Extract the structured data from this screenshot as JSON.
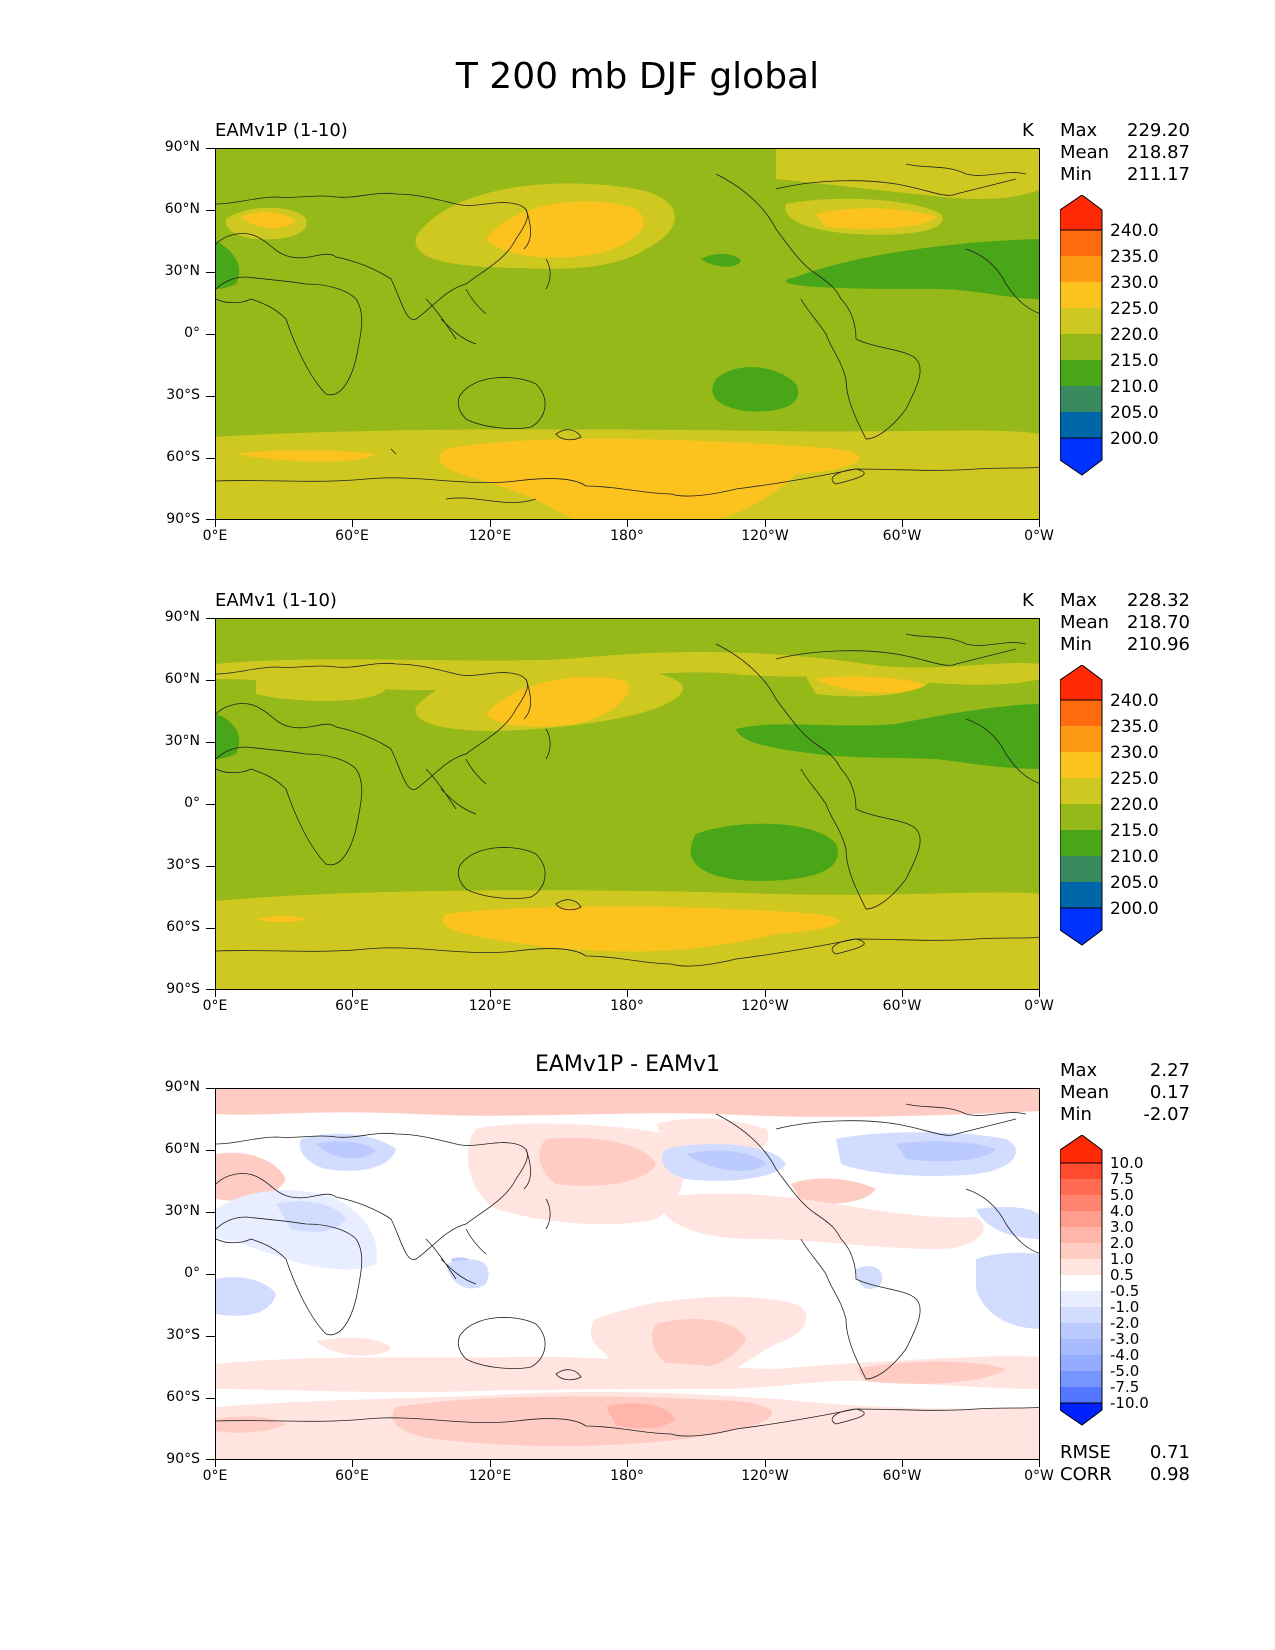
{
  "figure_title": "T 200 mb DJF global",
  "x_tick_labels": [
    "0°E",
    "60°E",
    "120°E",
    "180°",
    "120°W",
    "60°W",
    "0°W"
  ],
  "y_tick_labels": [
    "90°N",
    "60°N",
    "30°N",
    "0°",
    "30°S",
    "60°S",
    "90°S"
  ],
  "panels": [
    {
      "title": "EAMv1P (1-10)",
      "units": "K",
      "stats": {
        "max_label": "Max",
        "max": "229.20",
        "mean_label": "Mean",
        "mean": "218.87",
        "min_label": "Min",
        "min": "211.17"
      },
      "colorbar_levels": [
        "240.0",
        "235.0",
        "230.0",
        "225.0",
        "220.0",
        "215.0",
        "210.0",
        "205.0",
        "200.0"
      ]
    },
    {
      "title": "EAMv1 (1-10)",
      "units": "K",
      "stats": {
        "max_label": "Max",
        "max": "228.32",
        "mean_label": "Mean",
        "mean": "218.70",
        "min_label": "Min",
        "min": "210.96"
      },
      "colorbar_levels": [
        "240.0",
        "235.0",
        "230.0",
        "225.0",
        "220.0",
        "215.0",
        "210.0",
        "205.0",
        "200.0"
      ]
    },
    {
      "title": "EAMv1P - EAMv1",
      "stats": {
        "max_label": "Max",
        "max": "2.27",
        "mean_label": "Mean",
        "mean": "0.17",
        "min_label": "Min",
        "min": "-2.07"
      },
      "colorbar_levels": [
        "10.0",
        "7.5",
        "5.0",
        "4.0",
        "3.0",
        "2.0",
        "1.0",
        "0.5",
        "-0.5",
        "-1.0",
        "-2.0",
        "-3.0",
        "-4.0",
        "-5.0",
        "-7.5",
        "-10.0"
      ],
      "metrics": {
        "rmse_label": "RMSE",
        "rmse": "0.71",
        "corr_label": "CORR",
        "corr": "0.98"
      }
    }
  ],
  "colors": {
    "abs_scale": [
      "#0033ff",
      "#0066aa",
      "#3a8a60",
      "#48a618",
      "#94b918",
      "#cfc820",
      "#fcc21e",
      "#ff9a15",
      "#ff6a0f",
      "#ff2a05"
    ],
    "diff_scale": [
      "#0022ff",
      "#3355ff",
      "#5577ff",
      "#7795ff",
      "#93acff",
      "#a8bbff",
      "#bccbff",
      "#d2dcff",
      "#e8eeff",
      "#ffffff",
      "#ffe4e0",
      "#ffccc4",
      "#ffb5aa",
      "#ff9d8e",
      "#ff8470",
      "#ff6a54",
      "#ff4a30",
      "#ff2a05"
    ]
  },
  "chart_data": [
    {
      "type": "heatmap",
      "title": "EAMv1P (1-10)",
      "variable": "T 200 mb DJF",
      "units": "K",
      "x_range": [
        0,
        360
      ],
      "y_range": [
        -90,
        90
      ],
      "stats": {
        "max": 229.2,
        "mean": 218.87,
        "min": 211.17
      },
      "contour_levels": [
        200,
        205,
        210,
        215,
        220,
        225,
        230,
        235,
        240
      ]
    },
    {
      "type": "heatmap",
      "title": "EAMv1 (1-10)",
      "variable": "T 200 mb DJF",
      "units": "K",
      "x_range": [
        0,
        360
      ],
      "y_range": [
        -90,
        90
      ],
      "stats": {
        "max": 228.32,
        "mean": 218.7,
        "min": 210.96
      },
      "contour_levels": [
        200,
        205,
        210,
        215,
        220,
        225,
        230,
        235,
        240
      ]
    },
    {
      "type": "heatmap",
      "title": "EAMv1P - EAMv1",
      "x_range": [
        0,
        360
      ],
      "y_range": [
        -90,
        90
      ],
      "stats": {
        "max": 2.27,
        "mean": 0.17,
        "min": -2.07
      },
      "rmse": 0.71,
      "corr": 0.98,
      "contour_levels": [
        -10.0,
        -7.5,
        -5.0,
        -4.0,
        -3.0,
        -2.0,
        -1.0,
        -0.5,
        0.5,
        1.0,
        2.0,
        3.0,
        4.0,
        5.0,
        7.5,
        10.0
      ]
    }
  ]
}
